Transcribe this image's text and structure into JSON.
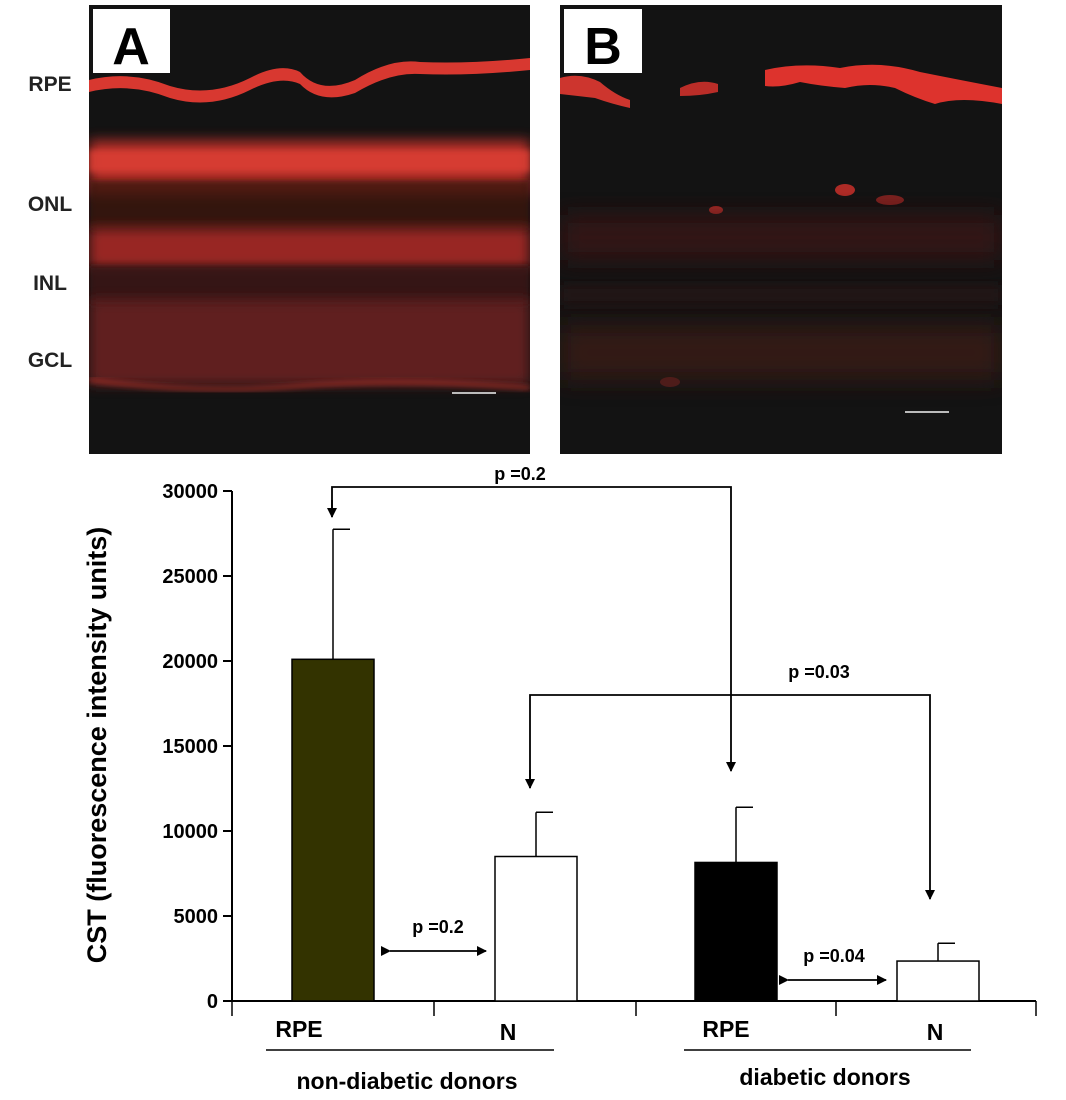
{
  "panels": {
    "a_label": "A",
    "b_label": "B",
    "layer_labels": [
      "RPE",
      "ONL",
      "INL",
      "GCL"
    ]
  },
  "colors": {
    "background": "#ffffff",
    "micrograph_bg": "#131313",
    "stain_red": "#e8302a",
    "bar_nondiabetic_rpe": "#333300",
    "bar_diabetic_rpe": "#000000",
    "bar_nuclear": "#ffffff",
    "axis": "#000000"
  },
  "chart_data": {
    "type": "bar",
    "ylabel": "CST (fluorescence intensity units)",
    "xlabel": "",
    "ylim": [
      0,
      30000
    ],
    "yticks": [
      0,
      5000,
      10000,
      15000,
      20000,
      25000,
      30000
    ],
    "yticks_labels": [
      "0",
      "5000",
      "10000",
      "15000",
      "20000",
      "25000",
      "30000"
    ],
    "categories": [
      "RPE",
      "N",
      "RPE",
      "N"
    ],
    "groups": [
      {
        "label": "non-diabetic donors",
        "categories": [
          "RPE",
          "N"
        ]
      },
      {
        "label": "diabetic donors",
        "categories": [
          "RPE",
          "N"
        ]
      }
    ],
    "values": [
      20100,
      8500,
      8150,
      2350
    ],
    "error_upper": [
      27750,
      11100,
      11400,
      3400
    ],
    "bar_colors": [
      "#333300",
      "#ffffff",
      "#000000",
      "#ffffff"
    ],
    "comparisons": [
      {
        "label": "p =0.2",
        "between": [
          "non-diabetic RPE",
          "diabetic RPE"
        ]
      },
      {
        "label": "p =0.03",
        "between": [
          "non-diabetic N",
          "diabetic N"
        ]
      },
      {
        "label": "p =0.2",
        "between": [
          "non-diabetic RPE",
          "non-diabetic N"
        ]
      },
      {
        "label": "p =0.04",
        "between": [
          "diabetic RPE",
          "diabetic N"
        ]
      }
    ]
  }
}
